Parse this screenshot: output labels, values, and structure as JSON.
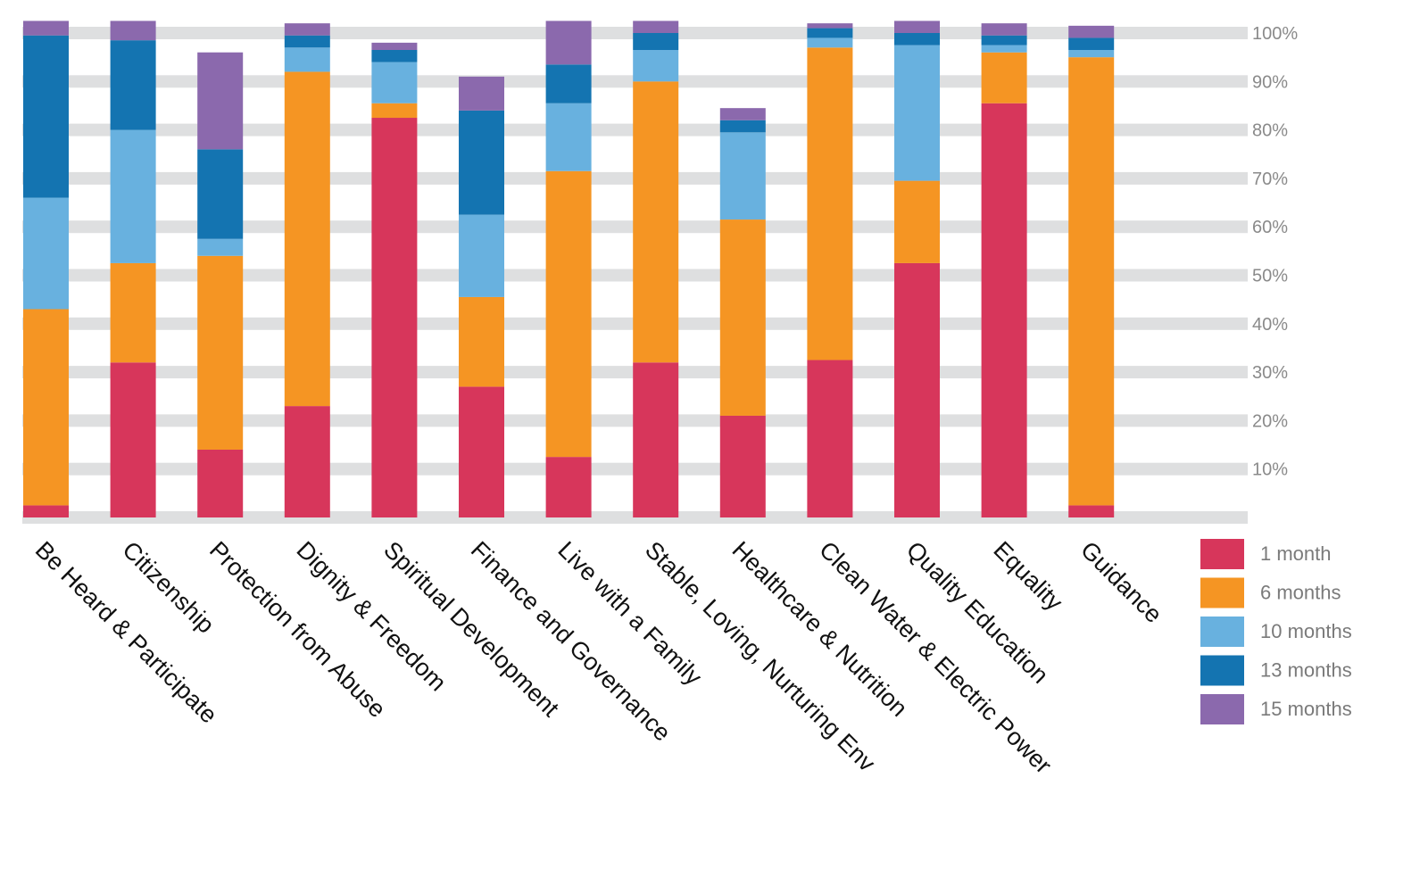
{
  "chart_data": {
    "type": "bar",
    "stacked": true,
    "categories": [
      "Be Heard & Participate",
      "Citizenship",
      "Protection from Abuse",
      "Dignity & Freedom",
      "Spiritual Development",
      "Finance and Governance",
      "Live with a Family",
      "Stable, Loving, Nurturing Env",
      "Healthcare & Nutrition",
      "Clean Water & Electric Power",
      "Quality Education",
      "Equality",
      "Guidance"
    ],
    "series": [
      {
        "name": "1 month",
        "color": "#d7365b",
        "values": [
          2.5,
          32,
          14,
          23,
          82.5,
          27,
          12.5,
          32,
          21,
          32.5,
          52.5,
          85.5,
          2.5
        ]
      },
      {
        "name": "6 months",
        "color": "#f59523",
        "values": [
          40.5,
          20.5,
          40,
          69,
          3,
          18.5,
          59,
          58,
          40.5,
          64.5,
          17,
          10.5,
          92.5
        ]
      },
      {
        "name": "10 months",
        "color": "#68b1df",
        "values": [
          23,
          27.5,
          3.5,
          5,
          8.5,
          17,
          14,
          6.5,
          18,
          2,
          28,
          1.5,
          1.5
        ]
      },
      {
        "name": "13 months",
        "color": "#1474b1",
        "values": [
          33.5,
          18.5,
          18.5,
          2.5,
          2.5,
          21.5,
          8,
          3.5,
          2.5,
          2,
          2.5,
          2,
          2.5
        ]
      },
      {
        "name": "15 months",
        "color": "#8b69ad",
        "values": [
          3,
          4,
          20,
          2.5,
          1.5,
          7,
          9,
          2.5,
          2.5,
          1,
          2.5,
          2.5,
          2.5
        ]
      }
    ],
    "yticks": [
      "10%",
      "20%",
      "30%",
      "40%",
      "50%",
      "60%",
      "70%",
      "80%",
      "90%",
      "100%"
    ],
    "ylim": [
      0,
      100
    ],
    "grid": true,
    "legend_position": "bottom-right"
  }
}
